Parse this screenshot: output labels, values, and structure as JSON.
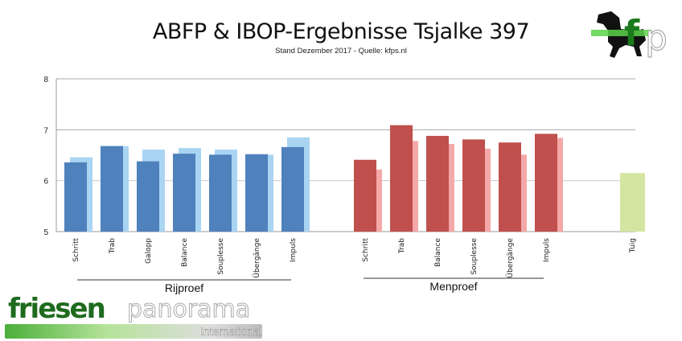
{
  "header": {
    "title": "ABFP & IBOP-Ergebnisse Tsjalke 397",
    "subtitle": "Stand Dezember 2017 - Quelle: kfps.nl"
  },
  "logos": {
    "top_right": "fp",
    "bottom_left": "friesenpanorama International"
  },
  "chart_data": {
    "type": "bar",
    "title": "ABFP & IBOP-Ergebnisse Tsjalke 397",
    "subtitle": "Stand Dezember 2017 - Quelle: kfps.nl",
    "ylim": [
      5,
      8
    ],
    "yticks": [
      "5",
      "6",
      "7",
      "8"
    ],
    "grid": true,
    "groups": [
      {
        "label": "Rijproef",
        "categories": [
          "Schritt",
          "Trab",
          "Galopp",
          "Balance",
          "Souplesse",
          "Übergänge",
          "Impuls"
        ],
        "series": [
          {
            "color": "#4f81bd",
            "values": [
              6.36,
              6.68,
              6.38,
              6.53,
              6.51,
              6.52,
              6.66
            ]
          },
          {
            "color": "#a9d4f2",
            "values": [
              6.46,
              6.68,
              6.61,
              6.64,
              6.61,
              6.51,
              6.85
            ]
          }
        ]
      },
      {
        "label": "Menproef",
        "categories": [
          "Schritt",
          "Trab",
          "Balance",
          "Souplesse",
          "Übergänge",
          "Impuls"
        ],
        "series": [
          {
            "color": "#c0504d",
            "values": [
              6.41,
              7.09,
              6.88,
              6.81,
              6.75,
              6.92
            ]
          },
          {
            "color": "#f4a9a8",
            "values": [
              6.22,
              6.78,
              6.72,
              6.63,
              6.51,
              6.84
            ]
          }
        ]
      },
      {
        "label": "",
        "categories": [
          "Tuig"
        ],
        "series": [
          {
            "color": "#d3e5a0",
            "values": [
              6.15
            ]
          }
        ]
      }
    ]
  }
}
